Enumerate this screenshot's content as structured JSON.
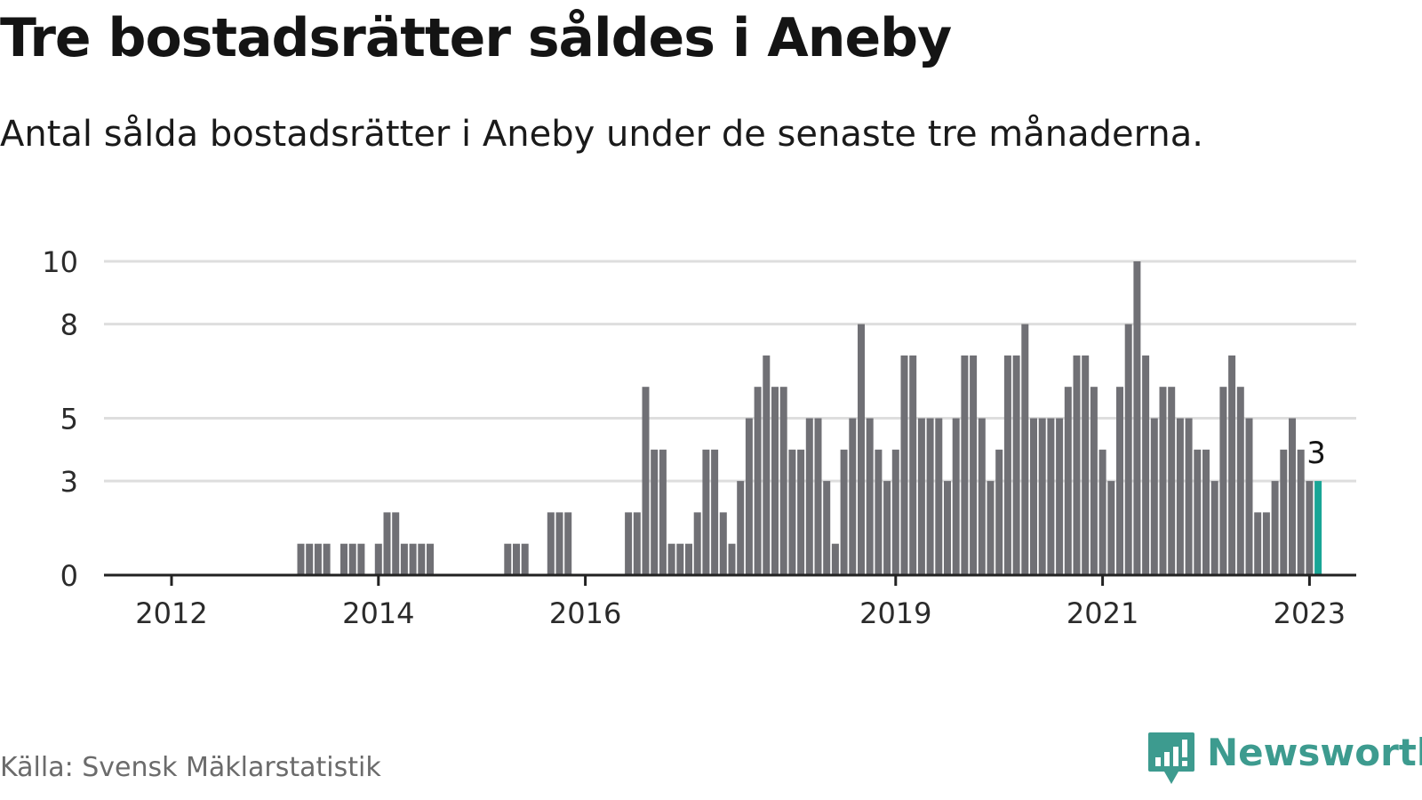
{
  "header": {
    "title": "Tre bostadsrätter såldes i Aneby",
    "subtitle": "Antal sålda bostadsrätter i Aneby under de senaste tre månaderna."
  },
  "footer": {
    "source": "Källa: Svensk Mäklarstatistik",
    "brand": "Newsworthy",
    "brand_icon": "chart-bubble-icon"
  },
  "colors": {
    "bar": "#707075",
    "highlight": "#19a596",
    "grid": "#dedede",
    "axis": "#222222",
    "brand": "#3d9b8f"
  },
  "chart_data": {
    "type": "bar",
    "title": "Tre bostadsrätter såldes i Aneby",
    "subtitle": "Antal sålda bostadsrätter i Aneby under de senaste tre månaderna.",
    "xlabel": "",
    "ylabel": "",
    "ylim": [
      0,
      10
    ],
    "y_ticks": [
      0,
      3,
      5,
      8,
      10
    ],
    "y_tick_labels": [
      "0",
      "3",
      "5",
      "8",
      "10"
    ],
    "grid": true,
    "x_ticks": [
      {
        "label": "2012",
        "index": 7
      },
      {
        "label": "2014",
        "index": 31
      },
      {
        "label": "2016",
        "index": 55
      },
      {
        "label": "2019",
        "index": 91
      },
      {
        "label": "2021",
        "index": 115
      },
      {
        "label": "2023",
        "index": 139
      }
    ],
    "highlight_index": 140,
    "highlight_label": "3",
    "values": [
      0,
      0,
      0,
      0,
      0,
      0,
      0,
      0,
      0,
      0,
      0,
      0,
      0,
      0,
      0,
      0,
      0,
      0,
      0,
      0,
      0,
      0,
      1,
      1,
      1,
      1,
      0,
      1,
      1,
      1,
      0,
      1,
      2,
      2,
      1,
      1,
      1,
      1,
      0,
      0,
      0,
      0,
      0,
      0,
      0,
      0,
      1,
      1,
      1,
      0,
      0,
      2,
      2,
      2,
      0,
      0,
      0,
      0,
      0,
      0,
      2,
      2,
      6,
      4,
      4,
      1,
      1,
      1,
      2,
      4,
      4,
      2,
      1,
      3,
      5,
      6,
      7,
      6,
      6,
      4,
      4,
      5,
      5,
      3,
      1,
      4,
      5,
      8,
      5,
      4,
      3,
      4,
      7,
      7,
      5,
      5,
      5,
      3,
      5,
      7,
      7,
      5,
      3,
      4,
      7,
      7,
      8,
      5,
      5,
      5,
      5,
      6,
      7,
      7,
      6,
      4,
      3,
      6,
      8,
      10,
      7,
      5,
      6,
      6,
      5,
      5,
      4,
      4,
      3,
      6,
      7,
      6,
      5,
      2,
      2,
      3,
      4,
      5,
      4,
      3,
      3
    ]
  }
}
